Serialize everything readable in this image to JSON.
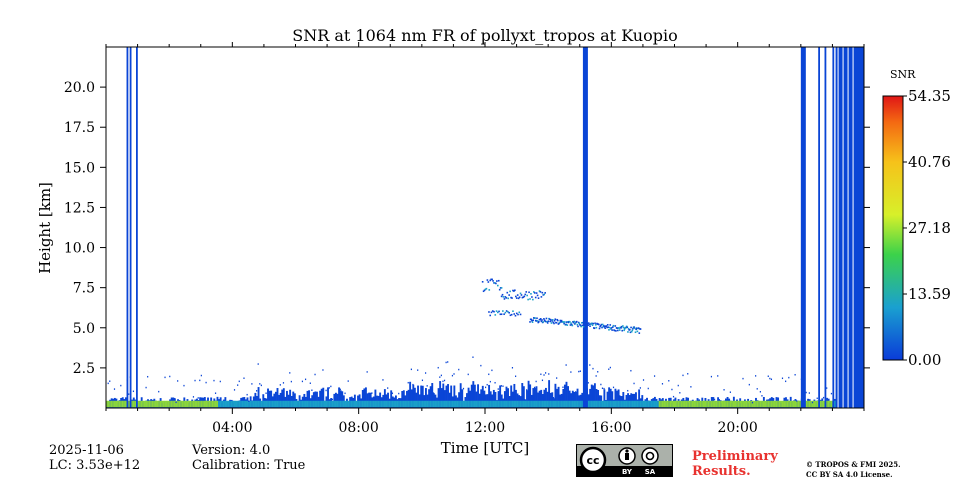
{
  "chart_data": {
    "type": "heatmap",
    "title": "SNR at 1064 nm FR of pollyxt_tropos at Kuopio",
    "xlabel": "Time [UTC]",
    "ylabel": "Height [km]",
    "xlim": [
      0,
      24
    ],
    "ylim": [
      0,
      22.5
    ],
    "x_ticks": [
      4,
      8,
      12,
      16,
      20
    ],
    "x_tick_labels": [
      "04:00",
      "08:00",
      "12:00",
      "16:00",
      "20:00"
    ],
    "y_ticks": [
      2.5,
      5.0,
      7.5,
      10.0,
      12.5,
      15.0,
      17.5,
      20.0
    ],
    "y_tick_labels": [
      "2.5",
      "5.0",
      "7.5",
      "10.0",
      "12.5",
      "15.0",
      "17.5",
      "20.0"
    ],
    "colorbar": {
      "label": "SNR",
      "range": [
        0,
        54.35
      ],
      "tick_values": [
        0,
        13.59,
        27.18,
        40.76,
        54.35
      ],
      "tick_labels": [
        "0.00",
        "13.59",
        "27.18",
        "40.76",
        "54.35"
      ]
    },
    "features": [
      {
        "name": "boundary layer signal",
        "x": [
          0.0,
          24.0
        ],
        "height_km": [
          0.0,
          1.2
        ],
        "snr": [
          0,
          25
        ]
      },
      {
        "name": "full-column profiles",
        "x": [
          0.65,
          0.75,
          0.95,
          15.1,
          22.0,
          22.55,
          22.75,
          23.0
        ],
        "height_km": [
          0,
          22.5
        ],
        "snr": [
          0,
          3
        ]
      },
      {
        "name": "cloud layer",
        "x": [
          11.9,
          16.9
        ],
        "height_km": [
          4.7,
          8.0
        ],
        "snr": [
          0,
          6
        ]
      },
      {
        "name": "missing data end of day",
        "x": [
          23.1,
          24.0
        ],
        "height_km": [
          0,
          22.5
        ],
        "snr": [
          0,
          1
        ]
      }
    ]
  },
  "meta": {
    "date": "2025-11-06",
    "lc": "LC: 3.53e+12",
    "version": "Version: 4.0",
    "calibration": "Calibration: True",
    "preliminary": [
      "Preliminary",
      "Results."
    ],
    "copyright": [
      "© TROPOS & FMI 2025.",
      "CC BY SA 4.0 License."
    ],
    "license_badge": [
      "cc",
      "BY",
      "SA"
    ]
  },
  "colors": {
    "axis": "#000000",
    "low_snr": "#0a45d6",
    "mid_snr": "#1aa0c8",
    "high_snr": "#8bd63a"
  }
}
